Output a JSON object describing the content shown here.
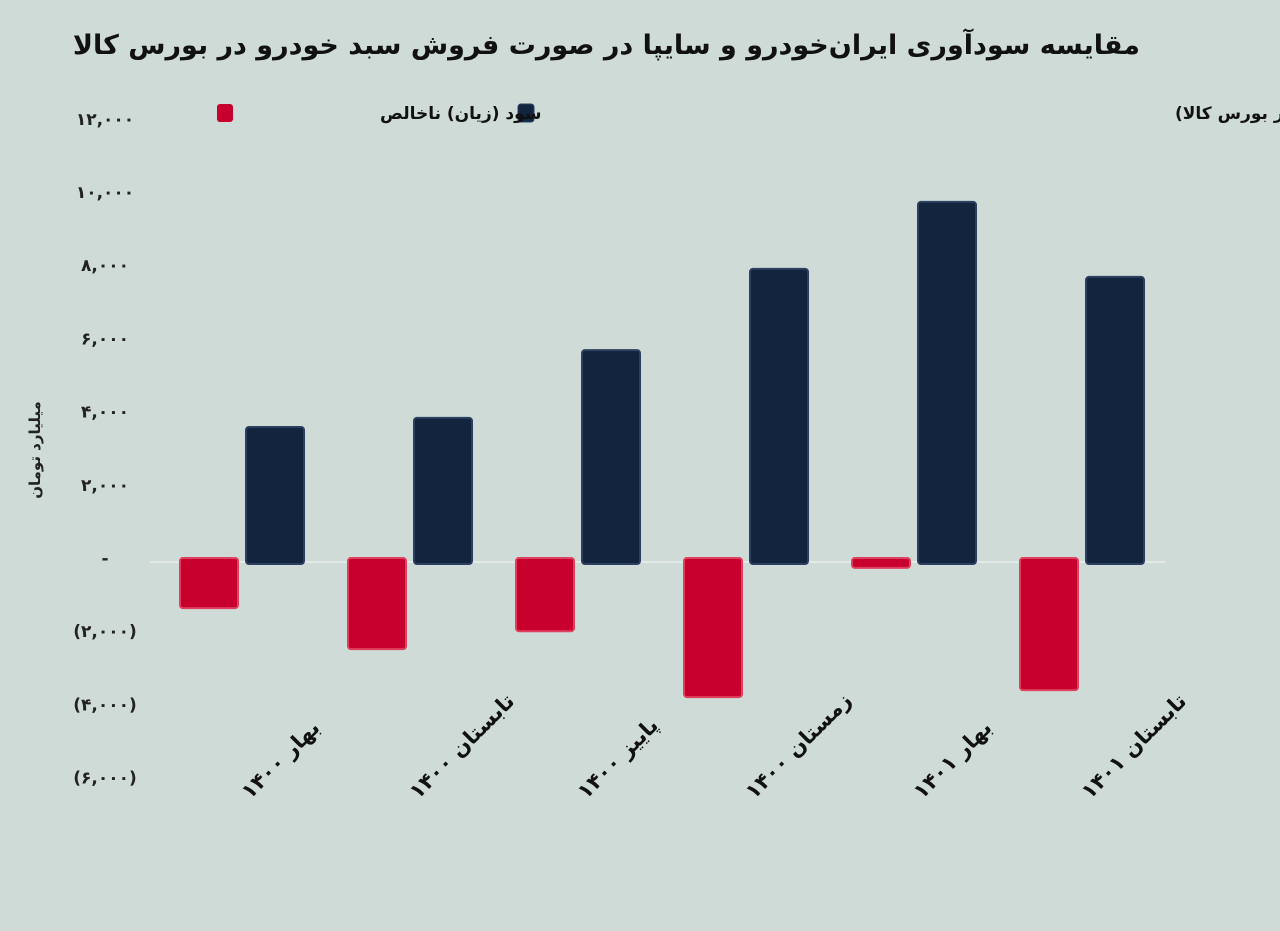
{
  "chart_data": {
    "type": "bar",
    "title": "مقایسه سودآوری ایران‌خودرو و سایپا در صورت فروش سبد خودرو در بورس کالا",
    "ylabel": "میلیارد تومان",
    "xlabel": "",
    "categories": [
      "بهار ۱۴۰۰",
      "تابستان ۱۴۰۰",
      "پاییز ۱۴۰۰",
      "زمستان ۱۴۰۰",
      "بهار ۱۴۰۱",
      "تابستان ۱۴۰۱"
    ],
    "series": [
      {
        "name": "سود (زیان) ناخالص",
        "color": "#c8002e",
        "values": [
          -1370,
          -2490,
          -2000,
          -3800,
          -270,
          -3610
        ]
      },
      {
        "name": "سود (زیان) ناخالص (با فرض فروش سبد محصول خودرویی در بورس کالا)",
        "color": "#13243f",
        "values": [
          3580,
          3830,
          5680,
          7900,
          9730,
          7680
        ]
      }
    ],
    "ylim": [
      -6000,
      12000
    ],
    "yticks": [
      12000,
      10000,
      8000,
      6000,
      4000,
      2000,
      0,
      -2000,
      -4000,
      -6000
    ],
    "ytick_labels": [
      "۱۲,۰۰۰",
      "۱۰,۰۰۰",
      "۸,۰۰۰",
      "۶,۰۰۰",
      "۴,۰۰۰",
      "۲,۰۰۰",
      "-",
      "(۲,۰۰۰)",
      "(۴,۰۰۰)",
      "(۶,۰۰۰)"
    ],
    "grid": false,
    "legend": "top"
  }
}
